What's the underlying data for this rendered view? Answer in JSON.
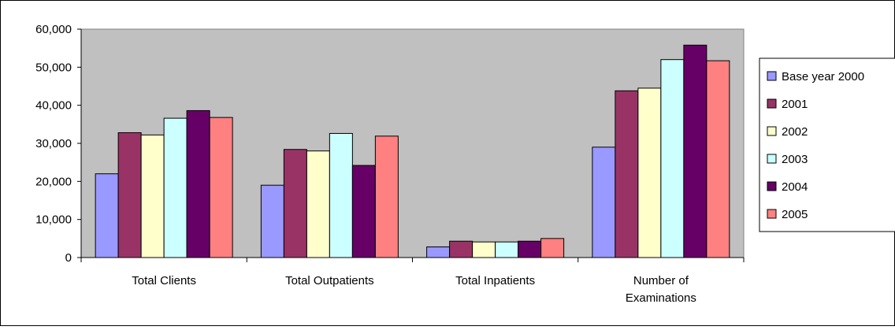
{
  "chart_data": {
    "type": "bar",
    "categories": [
      "Total Clients",
      "Total Outpatients",
      "Total Inpatients",
      "Number of Examinations"
    ],
    "series": [
      {
        "name": "Base year 2000",
        "color": "#9999ff",
        "values": [
          22000,
          19000,
          2800,
          29000
        ]
      },
      {
        "name": "2001",
        "color": "#993366",
        "values": [
          32800,
          28400,
          4300,
          43800
        ]
      },
      {
        "name": "2002",
        "color": "#ffffcc",
        "values": [
          32200,
          28000,
          4100,
          44500
        ]
      },
      {
        "name": "2003",
        "color": "#ccffff",
        "values": [
          36600,
          32600,
          4100,
          52000
        ]
      },
      {
        "name": "2004",
        "color": "#660066",
        "values": [
          38600,
          24200,
          4300,
          55800
        ]
      },
      {
        "name": "2005",
        "color": "#ff8080",
        "values": [
          36800,
          31900,
          5000,
          51700
        ]
      }
    ],
    "yticks": [
      "0",
      "10,000",
      "20,000",
      "30,000",
      "40,000",
      "50,000",
      "60,000"
    ],
    "ylim": [
      0,
      60000
    ],
    "title": "",
    "xlabel": "",
    "ylabel": "",
    "grid": false,
    "legend_position": "right",
    "plot_background": "#c0c0c0"
  }
}
